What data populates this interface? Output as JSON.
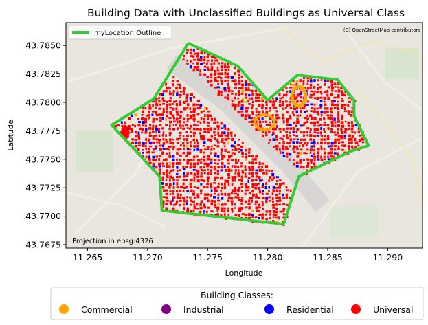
{
  "chart_data": {
    "type": "map",
    "title": "Building Data with Unclassified Buildings as Universal Class",
    "xlabel": "Longitude",
    "ylabel": "Latitude",
    "xlim": [
      11.2632,
      11.2929
    ],
    "ylim": [
      43.7672,
      43.787
    ],
    "xticks": [
      "11.265",
      "11.270",
      "11.275",
      "11.280",
      "11.285",
      "11.290"
    ],
    "yticks": [
      "43.7675",
      "43.7700",
      "43.7725",
      "43.7750",
      "43.7775",
      "43.7800",
      "43.7825",
      "43.7850"
    ],
    "attribution": "(C) OpenStreetMap contributors",
    "projection_note": "Projection in epsg:4326",
    "outline_legend": {
      "label": "myLocation Outline",
      "color": "#32cd32"
    },
    "outline": [
      [
        11.2734,
        43.7852
      ],
      [
        11.2775,
        43.7832
      ],
      [
        11.28,
        43.7802
      ],
      [
        11.2825,
        43.7824
      ],
      [
        11.2858,
        43.782
      ],
      [
        11.2872,
        43.7802
      ],
      [
        11.2872,
        43.7788
      ],
      [
        11.2884,
        43.7762
      ],
      [
        11.2869,
        43.7757
      ],
      [
        11.2826,
        43.7735
      ],
      [
        11.2814,
        43.7695
      ],
      [
        11.2813,
        43.7693
      ],
      [
        11.2712,
        43.7705
      ],
      [
        11.271,
        43.7735
      ],
      [
        11.267,
        43.778
      ],
      [
        11.2705,
        43.7803
      ],
      [
        11.2734,
        43.7852
      ]
    ],
    "legend": {
      "title": "Building Classes:",
      "items": [
        {
          "label": "Commercial",
          "color": "#ffa500"
        },
        {
          "label": "Industrial",
          "color": "#800080"
        },
        {
          "label": "Residential",
          "color": "#0000ff"
        },
        {
          "label": "Universal",
          "color": "#ff0000"
        }
      ]
    }
  }
}
